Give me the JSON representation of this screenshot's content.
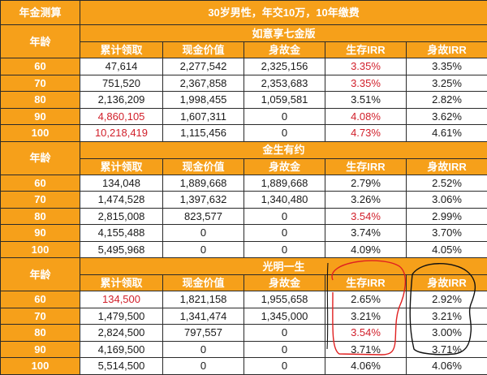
{
  "header": {
    "corner_label": "年金测算",
    "title": "30岁男性，年交10万，10年缴费"
  },
  "age_label": "年龄",
  "columns": [
    "累计领取",
    "现金价值",
    "身故金",
    "生存IRR",
    "身故IRR"
  ],
  "sections": [
    {
      "name": "如意享七金版",
      "rows": [
        {
          "age": "60",
          "cells": [
            "47,614",
            "2,277,542",
            "2,325,156",
            "3.35%",
            "3.35%"
          ],
          "red": [
            false,
            false,
            false,
            true,
            false
          ]
        },
        {
          "age": "70",
          "cells": [
            "751,520",
            "2,367,858",
            "2,353,683",
            "3.35%",
            "3.25%"
          ],
          "red": [
            false,
            false,
            false,
            true,
            false
          ]
        },
        {
          "age": "80",
          "cells": [
            "2,136,209",
            "1,998,455",
            "1,059,581",
            "3.51%",
            "2.82%"
          ],
          "red": [
            false,
            false,
            false,
            false,
            false
          ]
        },
        {
          "age": "90",
          "cells": [
            "4,860,105",
            "1,607,311",
            "0",
            "4.08%",
            "3.62%"
          ],
          "red": [
            true,
            false,
            false,
            true,
            false
          ]
        },
        {
          "age": "100",
          "cells": [
            "10,218,419",
            "1,115,456",
            "0",
            "4.73%",
            "4.61%"
          ],
          "red": [
            true,
            false,
            false,
            true,
            false
          ]
        }
      ]
    },
    {
      "name": "金生有约",
      "rows": [
        {
          "age": "60",
          "cells": [
            "134,048",
            "1,889,668",
            "1,889,668",
            "2.79%",
            "2.52%"
          ],
          "red": [
            false,
            false,
            false,
            false,
            false
          ]
        },
        {
          "age": "70",
          "cells": [
            "1,474,528",
            "1,397,632",
            "1,340,480",
            "3.26%",
            "3.06%"
          ],
          "red": [
            false,
            false,
            false,
            false,
            false
          ]
        },
        {
          "age": "80",
          "cells": [
            "2,815,008",
            "823,577",
            "0",
            "3.54%",
            "2.99%"
          ],
          "red": [
            false,
            false,
            false,
            true,
            false
          ]
        },
        {
          "age": "90",
          "cells": [
            "4,155,488",
            "0",
            "0",
            "3.74%",
            "3.70%"
          ],
          "red": [
            false,
            false,
            false,
            false,
            false
          ]
        },
        {
          "age": "100",
          "cells": [
            "5,495,968",
            "0",
            "0",
            "4.09%",
            "4.05%"
          ],
          "red": [
            false,
            false,
            false,
            false,
            false
          ]
        }
      ]
    },
    {
      "name": "光明一生",
      "rows": [
        {
          "age": "60",
          "cells": [
            "134,500",
            "1,821,158",
            "1,955,658",
            "2.65%",
            "2.92%"
          ],
          "red": [
            true,
            false,
            false,
            false,
            false
          ]
        },
        {
          "age": "70",
          "cells": [
            "1,479,500",
            "1,341,474",
            "1,345,000",
            "3.21%",
            "3.21%"
          ],
          "red": [
            false,
            false,
            false,
            false,
            false
          ]
        },
        {
          "age": "80",
          "cells": [
            "2,824,500",
            "797,557",
            "0",
            "3.54%",
            "3.00%"
          ],
          "red": [
            false,
            false,
            false,
            true,
            false
          ]
        },
        {
          "age": "90",
          "cells": [
            "4,169,500",
            "0",
            "0",
            "3.71%",
            "3.71%"
          ],
          "red": [
            false,
            false,
            false,
            false,
            false
          ]
        },
        {
          "age": "100",
          "cells": [
            "5,514,500",
            "0",
            "0",
            "4.06%",
            "4.06%"
          ],
          "red": [
            false,
            false,
            false,
            false,
            false
          ]
        }
      ]
    }
  ],
  "colors": {
    "header_orange": "#f6a01a",
    "text_red": "#d11f2a",
    "annotation_red": "#e02020",
    "annotation_black": "#111111"
  }
}
